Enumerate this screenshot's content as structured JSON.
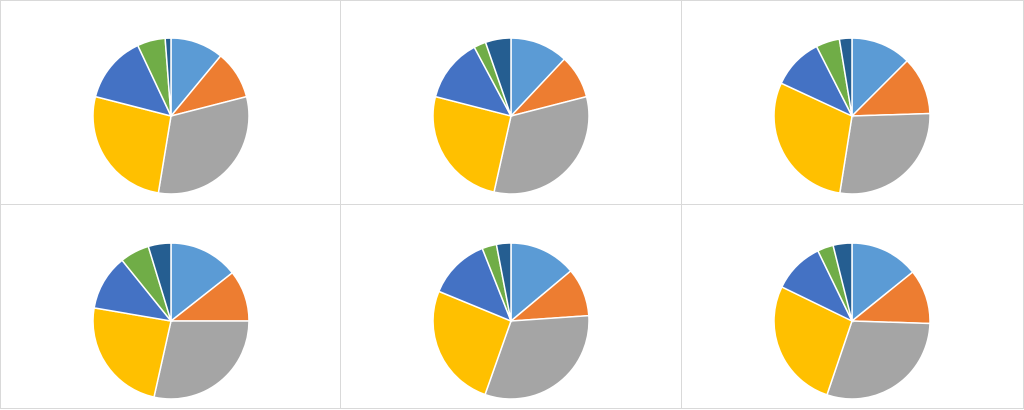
{
  "colors": [
    "#5B9BD5",
    "#ED7D31",
    "#A5A5A5",
    "#FFC000",
    "#4472C4",
    "#70AD47",
    "#255E91"
  ],
  "chart_data": [
    {
      "type": "pie",
      "values": [
        11.0,
        10.0,
        31.6,
        26.4,
        14.0,
        5.8,
        1.2
      ]
    },
    {
      "type": "pie",
      "values": [
        12.0,
        9.0,
        32.5,
        25.5,
        13.2,
        2.5,
        5.3
      ]
    },
    {
      "type": "pie",
      "values": [
        12.5,
        12.0,
        28.0,
        29.4,
        10.6,
        4.9,
        2.6
      ]
    },
    {
      "type": "pie",
      "values": [
        14.4,
        10.6,
        28.5,
        24.2,
        11.5,
        6.1,
        4.7
      ]
    },
    {
      "type": "pie",
      "values": [
        13.9,
        10.0,
        31.5,
        25.8,
        12.8,
        3.0,
        3.0
      ]
    },
    {
      "type": "pie",
      "values": [
        14.2,
        11.3,
        29.7,
        27.0,
        10.6,
        3.3,
        3.9
      ]
    }
  ]
}
